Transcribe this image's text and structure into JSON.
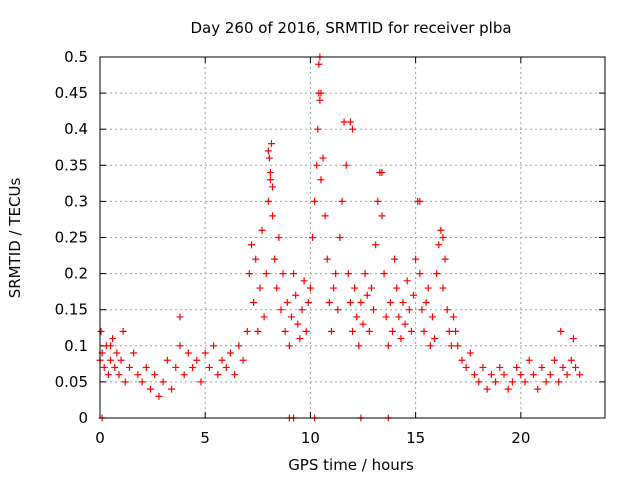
{
  "chart_data": {
    "type": "scatter",
    "title": "Day 260 of 2016, SRMTID for receiver plba",
    "xlabel": "GPS time / hours",
    "ylabel": "SRMTID / TECUs",
    "xlim": [
      0,
      24
    ],
    "ylim": [
      0,
      0.5
    ],
    "xticks": [
      0,
      5,
      10,
      15,
      20
    ],
    "yticks": [
      0,
      0.05,
      0.1,
      0.15,
      0.2,
      0.25,
      0.3,
      0.35,
      0.4,
      0.45,
      0.5
    ],
    "xtick_labels": [
      "0",
      "5",
      "10",
      "15",
      "20"
    ],
    "ytick_labels": [
      "0",
      "0.05",
      "0.1",
      "0.15",
      "0.2",
      "0.25",
      "0.3",
      "0.35",
      "0.4",
      "0.45",
      "0.5"
    ],
    "grid": true,
    "marker": "+",
    "series_color": "#ff0000",
    "series": [
      {
        "name": "SRMTID",
        "x": [
          0.0,
          0.1,
          0.2,
          0.3,
          0.4,
          0.5,
          0.6,
          0.7,
          0.8,
          0.9,
          1.0,
          1.2,
          1.4,
          1.6,
          1.8,
          2.0,
          2.2,
          2.4,
          2.6,
          2.8,
          3.0,
          3.2,
          3.4,
          3.6,
          3.8,
          4.0,
          4.2,
          4.4,
          4.6,
          4.8,
          5.0,
          5.2,
          5.4,
          5.6,
          5.8,
          6.0,
          6.2,
          6.4,
          6.6,
          6.8,
          7.0,
          7.1,
          7.2,
          7.3,
          7.4,
          7.5,
          7.6,
          7.7,
          7.8,
          7.9,
          8.0,
          8.05,
          8.1,
          8.15,
          8.2,
          8.3,
          8.4,
          8.5,
          8.6,
          8.7,
          8.8,
          8.9,
          9.0,
          9.1,
          9.2,
          9.3,
          9.4,
          9.5,
          9.6,
          9.7,
          9.8,
          9.9,
          10.0,
          10.1,
          10.2,
          10.3,
          10.35,
          10.4,
          10.45,
          10.5,
          10.6,
          10.7,
          10.8,
          10.9,
          11.0,
          11.1,
          11.2,
          11.3,
          11.4,
          11.5,
          11.6,
          11.7,
          11.8,
          11.9,
          12.0,
          12.1,
          12.2,
          12.3,
          12.4,
          12.5,
          12.6,
          12.7,
          12.8,
          12.9,
          13.0,
          13.1,
          13.2,
          13.3,
          13.4,
          13.5,
          13.6,
          13.7,
          13.8,
          13.9,
          14.0,
          14.1,
          14.2,
          14.3,
          14.4,
          14.5,
          14.6,
          14.7,
          14.8,
          14.9,
          15.0,
          15.1,
          15.2,
          15.3,
          15.4,
          15.5,
          15.6,
          15.7,
          15.8,
          15.9,
          16.0,
          16.1,
          16.2,
          16.3,
          16.4,
          16.5,
          16.6,
          16.7,
          16.8,
          16.9,
          17.0,
          17.2,
          17.4,
          17.6,
          17.8,
          18.0,
          18.2,
          18.4,
          18.6,
          18.8,
          19.0,
          19.2,
          19.4,
          19.6,
          19.8,
          20.0,
          20.2,
          20.4,
          20.6,
          20.8,
          21.0,
          21.2,
          21.4,
          21.6,
          21.8,
          22.0,
          22.2,
          22.4,
          22.6,
          22.8,
          0.05,
          0.5,
          1.1,
          3.8,
          8.0,
          8.1,
          8.2,
          10.4,
          10.45,
          10.5,
          11.9,
          12.0,
          13.4,
          15.2,
          16.3,
          21.9,
          22.5,
          0.1,
          9.0,
          9.2,
          10.2,
          12.4,
          13.7
        ],
        "y": [
          0.08,
          0.09,
          0.07,
          0.1,
          0.06,
          0.08,
          0.11,
          0.07,
          0.09,
          0.06,
          0.08,
          0.05,
          0.07,
          0.09,
          0.06,
          0.05,
          0.07,
          0.04,
          0.06,
          0.03,
          0.05,
          0.08,
          0.04,
          0.07,
          0.1,
          0.06,
          0.09,
          0.07,
          0.08,
          0.05,
          0.09,
          0.07,
          0.1,
          0.06,
          0.08,
          0.07,
          0.09,
          0.06,
          0.1,
          0.08,
          0.12,
          0.2,
          0.24,
          0.16,
          0.22,
          0.12,
          0.18,
          0.26,
          0.14,
          0.2,
          0.3,
          0.36,
          0.33,
          0.38,
          0.28,
          0.22,
          0.18,
          0.25,
          0.15,
          0.2,
          0.12,
          0.16,
          0.1,
          0.14,
          0.2,
          0.17,
          0.13,
          0.11,
          0.15,
          0.19,
          0.12,
          0.16,
          0.18,
          0.25,
          0.3,
          0.35,
          0.4,
          0.45,
          0.5,
          0.33,
          0.36,
          0.28,
          0.22,
          0.16,
          0.12,
          0.18,
          0.2,
          0.15,
          0.25,
          0.3,
          0.41,
          0.35,
          0.2,
          0.16,
          0.12,
          0.18,
          0.14,
          0.1,
          0.16,
          0.13,
          0.2,
          0.17,
          0.12,
          0.18,
          0.15,
          0.24,
          0.3,
          0.34,
          0.28,
          0.2,
          0.14,
          0.1,
          0.16,
          0.12,
          0.22,
          0.18,
          0.14,
          0.11,
          0.16,
          0.13,
          0.19,
          0.15,
          0.12,
          0.17,
          0.22,
          0.3,
          0.2,
          0.15,
          0.12,
          0.16,
          0.18,
          0.1,
          0.14,
          0.11,
          0.2,
          0.24,
          0.26,
          0.18,
          0.22,
          0.15,
          0.12,
          0.1,
          0.14,
          0.12,
          0.1,
          0.08,
          0.07,
          0.09,
          0.06,
          0.05,
          0.07,
          0.04,
          0.06,
          0.05,
          0.07,
          0.06,
          0.04,
          0.05,
          0.07,
          0.06,
          0.05,
          0.08,
          0.06,
          0.04,
          0.07,
          0.05,
          0.06,
          0.08,
          0.05,
          0.07,
          0.06,
          0.08,
          0.07,
          0.06,
          0.12,
          0.1,
          0.12,
          0.14,
          0.37,
          0.34,
          0.32,
          0.49,
          0.44,
          0.45,
          0.41,
          0.4,
          0.34,
          0.3,
          0.25,
          0.12,
          0.11,
          0.0,
          0.0,
          0.0,
          0.0,
          0.0,
          0.0
        ]
      }
    ]
  }
}
